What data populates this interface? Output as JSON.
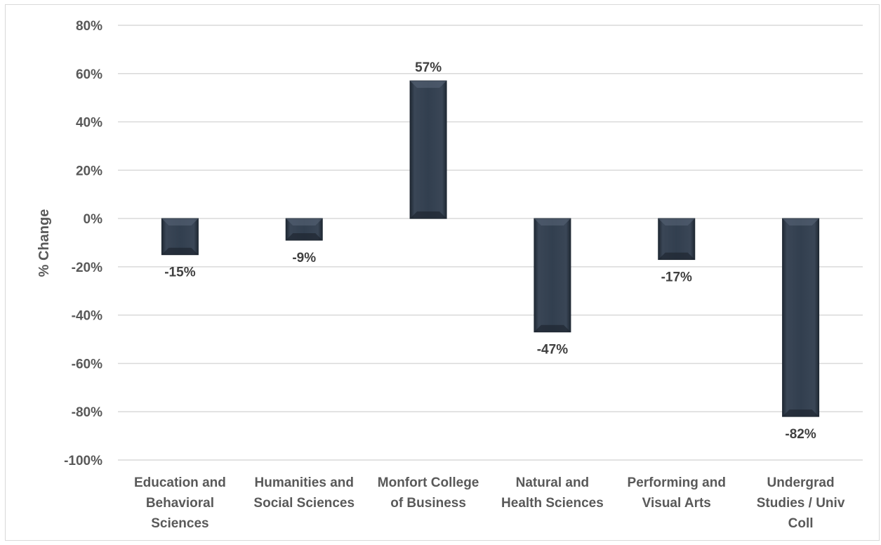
{
  "chart_data": {
    "type": "bar",
    "title": "",
    "xlabel": "",
    "ylabel": "% Change",
    "categories": [
      [
        "Education and",
        "Behavioral",
        "Sciences"
      ],
      [
        "Humanities and",
        "Social Sciences"
      ],
      [
        "Monfort College",
        "of Business"
      ],
      [
        "Natural and",
        "Health Sciences"
      ],
      [
        "Performing and",
        "Visual Arts"
      ],
      [
        "Undergrad",
        "Studies / Univ",
        "Coll"
      ]
    ],
    "values": [
      -15,
      -9,
      57,
      -47,
      -17,
      -82
    ],
    "data_labels": [
      "-15%",
      "-9%",
      "57%",
      "-47%",
      "-17%",
      "-82%"
    ],
    "ylim": [
      -100,
      80
    ],
    "yticks": [
      80,
      60,
      40,
      20,
      0,
      -20,
      -40,
      -60,
      -80,
      -100
    ],
    "ytick_labels": [
      "80%",
      "60%",
      "40%",
      "20%",
      "0%",
      "-20%",
      "-40%",
      "-60%",
      "-80%",
      "-100%"
    ],
    "grid": true,
    "legend": "none",
    "colors": {
      "bar": "#323f4f",
      "bar_edge": "#1f2833",
      "bar_highlight": "#5a6678",
      "grid": "#d9d9d9",
      "axis_text": "#595959",
      "label_text": "#404040"
    }
  }
}
